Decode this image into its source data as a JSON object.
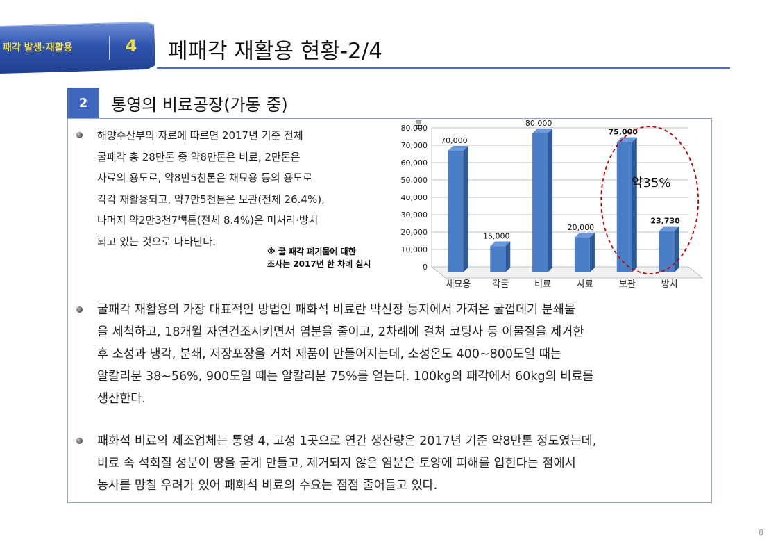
{
  "header": {
    "section_label": "패각 발생·재활용",
    "section_number": "4",
    "title": "폐패각 재활용 현황-2/4"
  },
  "subheader": {
    "number": "2",
    "title": "통영의 비료공장(가동 중)"
  },
  "paragraph1": {
    "lines": [
      "해양수산부의 자료에 따르면 2017년 기준 전체",
      "굴패각 총 28만톤 중 약8만톤은 비료, 2만톤은",
      "사료의 용도로, 약8만5천톤은 채묘용 등의 용도로",
      "각각 재활용되고, 약7만5천톤은 보관(전체 26.4%),",
      "나머지 약2만3천7백톤(전체 8.4%)은 미처리·방치",
      "되고 있는 것으로 나타난다."
    ]
  },
  "note": {
    "lines": [
      "※ 굴 패각 폐기물에 대한",
      "조사는 2017년 한 차례 실시"
    ]
  },
  "paragraph2": {
    "lines": [
      "굴패각 재활용의 가장 대표적인 방법인 패화석 비료란 박신장 등지에서 가져온 굴껍데기 분쇄물",
      "을 세척하고, 18개월 자연건조시키면서 염분을 줄이고, 2차례에 걸쳐 코팅사 등 이물질을 제거한",
      "후 소성과 냉각, 분쇄, 저장포장을 거쳐 제품이 만들어지는데, 소성온도 400~800도일 때는",
      "알칼리분 38~56%, 900도일 때는 알칼리분 75%를 얻는다. 100kg의 패각에서 60kg의 비료를",
      "생산한다."
    ]
  },
  "paragraph3": {
    "lines": [
      "패화석 비료의 제조업체는 통영 4, 고성 1곳으로 연간 생산량은 2017년 기준 약8만톤 정도였는데,",
      "비료 속 석회질 성분이 땅을 굳게 만들고, 제거되지 않은 염분은 토양에 피해를 입힌다는 점에서",
      "농사를 망칠 우려가 있어 패화석 비료의 수요는 점점 줄어들고 있다."
    ]
  },
  "chart_data": {
    "type": "bar",
    "ylabel": "톤",
    "categories": [
      "채묘용",
      "각굴",
      "비료",
      "사료",
      "보관",
      "방치"
    ],
    "values": [
      70000,
      15000,
      80000,
      20000,
      75000,
      23730
    ],
    "value_labels": [
      "70,000",
      "15,000",
      "80,000",
      "20,000",
      "75,000",
      "23,730"
    ],
    "bold_labels": [
      false,
      false,
      false,
      false,
      true,
      true
    ],
    "ylim": [
      0,
      80000
    ],
    "yticks": [
      0,
      10000,
      20000,
      30000,
      40000,
      50000,
      60000,
      70000,
      80000
    ],
    "ytick_labels": [
      "0",
      "10,000",
      "20,000",
      "30,000",
      "40,000",
      "50,000",
      "60,000",
      "70,000",
      "80,000"
    ],
    "grid": true,
    "bar_color": "#4a7ec7",
    "annotation": "약35%",
    "annotation_color": "#c00000"
  },
  "footer": {
    "page_number": "8"
  },
  "colors": {
    "accent": "#3f66bd",
    "tab_text": "#f6e04a",
    "rule": "#4a6fc4"
  }
}
